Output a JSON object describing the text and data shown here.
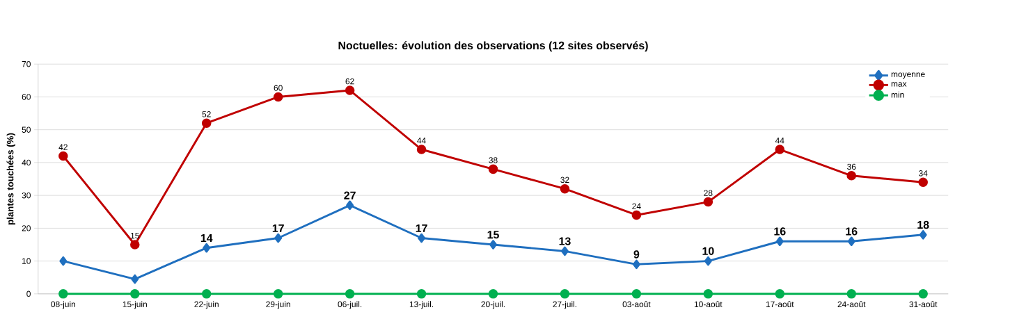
{
  "chart_data": {
    "type": "line",
    "title": "Noctuelles: évolution des observations  (12 sites observés)",
    "ylabel": "plantes touchées (%)",
    "categories": [
      "08-juin",
      "15-juin",
      "22-juin",
      "29-juin",
      "06-juil.",
      "13-juil.",
      "20-juil.",
      "27-juil.",
      "03-août",
      "10-août",
      "17-août",
      "24-août",
      "31-août"
    ],
    "series": [
      {
        "name": "moyenne",
        "color": "#1f6fbf",
        "marker": "diamond",
        "values": [
          10,
          4.5,
          14,
          17,
          27,
          17,
          15,
          13,
          9,
          10,
          16,
          16,
          18
        ],
        "value_labels": [
          null,
          null,
          "14",
          "17",
          "27",
          "17",
          "15",
          "13",
          "9",
          "10",
          "16",
          "16",
          "18"
        ]
      },
      {
        "name": "max",
        "color": "#c00000",
        "marker": "circle",
        "values": [
          42,
          15,
          52,
          60,
          62,
          44,
          38,
          32,
          24,
          28,
          44,
          36,
          34
        ],
        "value_labels": [
          "42",
          "15",
          "52",
          "60",
          "62",
          "44",
          "38",
          "32",
          "24",
          "28",
          "44",
          "36",
          "34"
        ]
      },
      {
        "name": "min",
        "color": "#00b050",
        "marker": "circle",
        "values": [
          0,
          0,
          0,
          0,
          0,
          0,
          0,
          0,
          0,
          0,
          0,
          0,
          0
        ]
      }
    ],
    "ylim": [
      0,
      70
    ],
    "yticks": [
      0,
      10,
      20,
      30,
      40,
      50,
      60,
      70
    ],
    "grid": "y",
    "legend": "top right",
    "line_style": "solid"
  }
}
